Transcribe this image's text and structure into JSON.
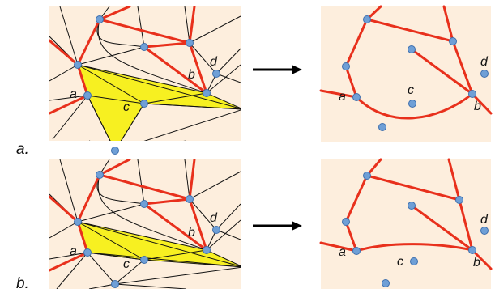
{
  "rows": [
    {
      "label": "a.",
      "left_points": {
        "a": "a",
        "b": "b",
        "c": "c",
        "d": "d"
      },
      "right_points": {
        "a": "a",
        "b": "b",
        "c": "c",
        "d": "d"
      }
    },
    {
      "label": "b.",
      "left_points": {
        "a": "a",
        "b": "b",
        "c": "c",
        "d": "d"
      },
      "right_points": {
        "a": "a",
        "b": "b",
        "c": "c",
        "d": "d"
      }
    }
  ],
  "colors": {
    "panel_background": "#fdeedd",
    "red_edge": "#e8301c",
    "yellow_region": "#f7f021",
    "node_fill": "#6f9fd6"
  }
}
